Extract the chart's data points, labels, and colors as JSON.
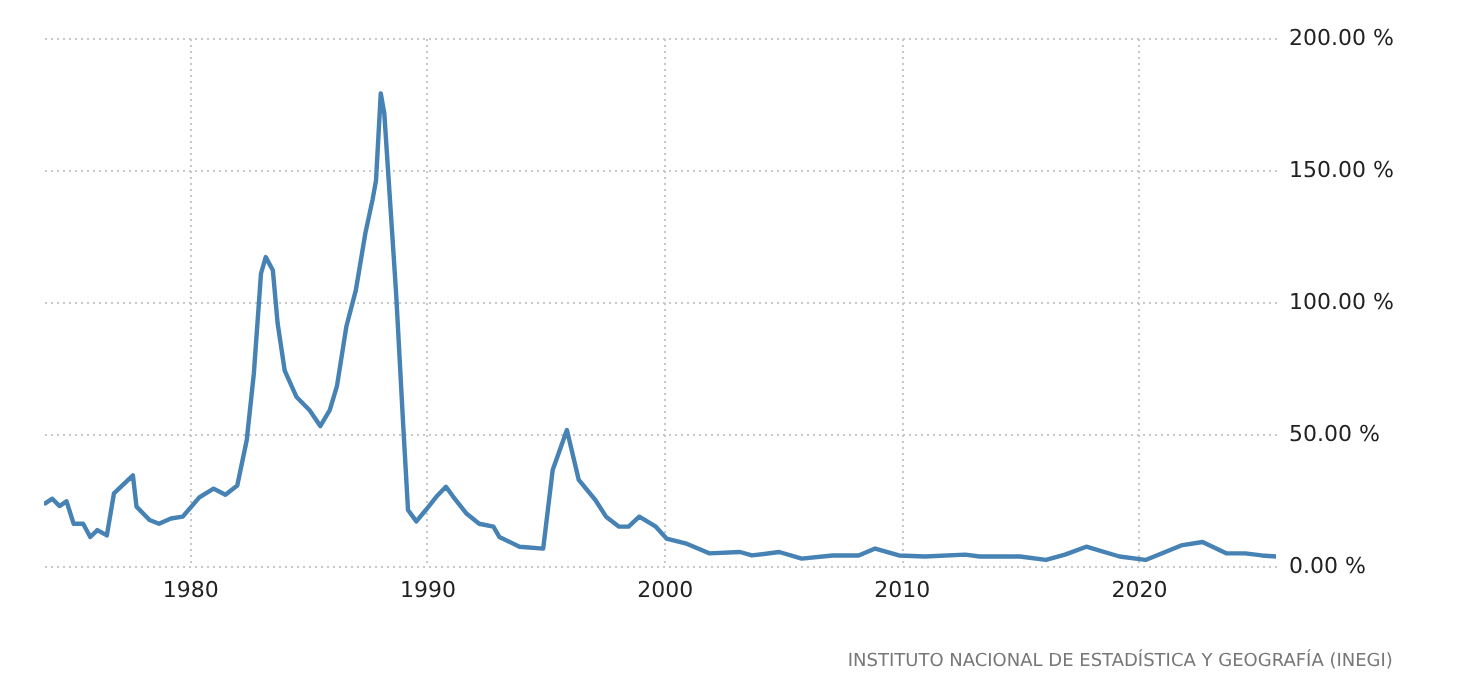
{
  "chart_data": {
    "type": "line",
    "x": [
      1973.9,
      1974.2,
      1974.5,
      1974.8,
      1975.1,
      1975.5,
      1975.8,
      1976.1,
      1976.5,
      1976.8,
      1977.6,
      1977.75,
      1978.3,
      1978.7,
      1979.2,
      1979.7,
      1980.4,
      1981.0,
      1981.5,
      1982.0,
      1982.4,
      1982.7,
      1983.0,
      1983.2,
      1983.5,
      1983.7,
      1984.0,
      1984.5,
      1985.05,
      1985.5,
      1985.9,
      1986.2,
      1986.6,
      1987.0,
      1987.4,
      1987.7,
      1987.85,
      1988.05,
      1988.2,
      1988.7,
      1989.0,
      1989.2,
      1989.55,
      1989.95,
      1990.4,
      1990.8,
      1991.1,
      1991.65,
      1992.2,
      1992.8,
      1993.05,
      1993.9,
      1994.9,
      1995.3,
      1995.9,
      1996.4,
      1997.1,
      1997.55,
      1998.1,
      1998.5,
      1998.95,
      1999.65,
      2000.1,
      2000.9,
      2001.9,
      2003.2,
      2003.7,
      2004.85,
      2005.8,
      2007.1,
      2008.2,
      2008.9,
      2009.9,
      2011.0,
      2012.7,
      2013.3,
      2015.0,
      2016.1,
      2016.9,
      2017.8,
      2019.2,
      2020.3,
      2021.0,
      2021.8,
      2022.7,
      2023.7,
      2024.5,
      2025.2,
      2025.8
    ],
    "series": [
      {
        "color": "#4682b4",
        "values": [
          23.7,
          25.5,
          22.7,
          24.5,
          16,
          16,
          11,
          13.6,
          11.6,
          27.5,
          34.3,
          22.5,
          17.4,
          16,
          18,
          18.7,
          26,
          29.3,
          27,
          30.5,
          47.7,
          73,
          110.8,
          117,
          112,
          92,
          74,
          64,
          59,
          53,
          59,
          68,
          90.7,
          104.5,
          126,
          138.6,
          146,
          179,
          171.4,
          103,
          52.8,
          21.2,
          16.9,
          21.2,
          26.3,
          30,
          26.3,
          20,
          16,
          14.9,
          11,
          7.3,
          6.6,
          36.4,
          51.5,
          32.6,
          25,
          18.7,
          14.9,
          14.9,
          18.7,
          14.9,
          10.4,
          8.6,
          4.8,
          5.3,
          4,
          5.3,
          2.8,
          4,
          4,
          6.6,
          4,
          3.6,
          4.3,
          3.6,
          3.6,
          2.3,
          4.3,
          7.3,
          3.6,
          2.3,
          4.8,
          7.8,
          9.1,
          4.8,
          4.8,
          4,
          3.6
        ]
      }
    ],
    "xlim": [
      1973.85,
      2025.8
    ],
    "xticks": [
      1980,
      1990,
      2000,
      2010,
      2020
    ],
    "ylim": [
      0,
      200
    ],
    "yticks": [
      {
        "value": 0,
        "label": "0.00 %"
      },
      {
        "value": 50,
        "label": "50.00 %"
      },
      {
        "value": 100,
        "label": "100.00 %"
      },
      {
        "value": 150,
        "label": "150.00 %"
      },
      {
        "value": 200,
        "label": "200.00 %"
      }
    ],
    "grid": true,
    "marker": "none",
    "line_style": "solid",
    "annotations": [
      "INSTITUTO NACIONAL DE ESTADÍSTICA Y GEOGRAFÍA (INEGI)"
    ]
  }
}
